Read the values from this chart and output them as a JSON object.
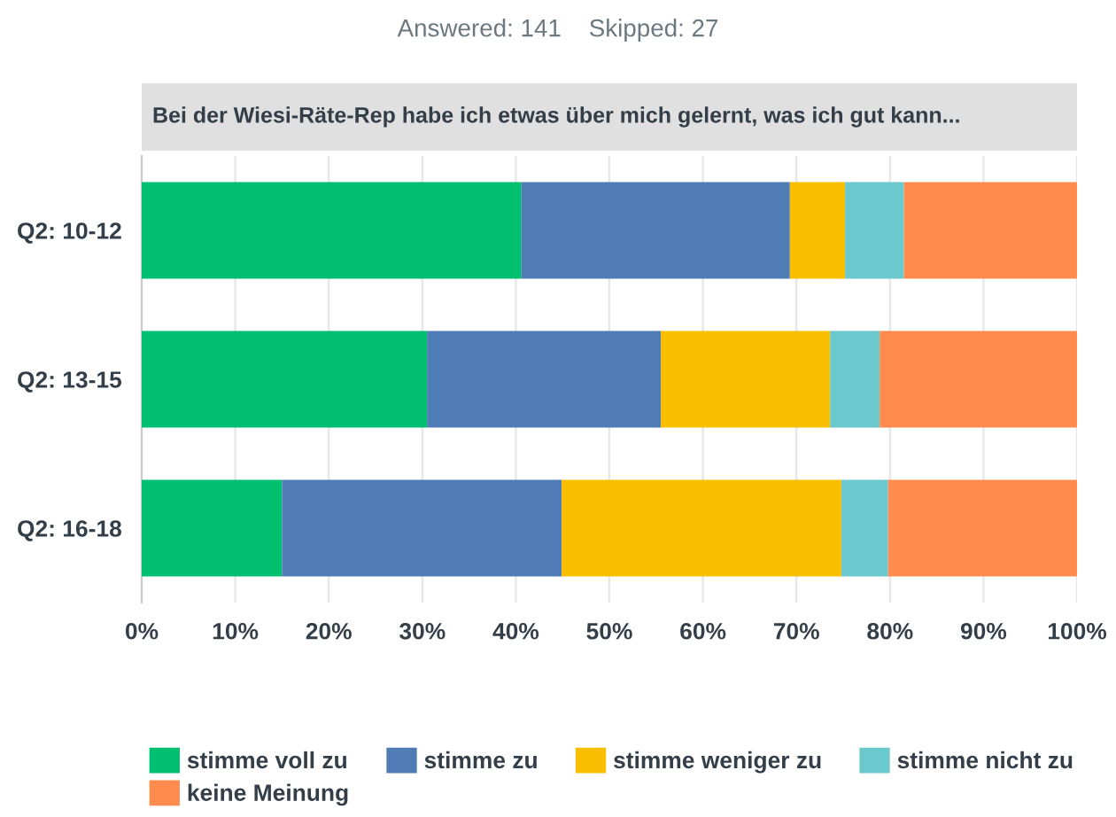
{
  "chart_data": {
    "type": "bar",
    "orientation": "horizontal",
    "stacked": true,
    "title": "Bei der Wiesi-Räte-Rep habe ich etwas über mich gelernt, was ich gut kann...",
    "subtitle": "Answered: 141    Skipped: 27",
    "categories": [
      "Q2: 10-12",
      "Q2: 13-15",
      "Q2: 16-18"
    ],
    "series": [
      {
        "name": "stimme voll zu",
        "color": "#00bf6f",
        "values": [
          40.6,
          30.5,
          15.0
        ]
      },
      {
        "name": "stimme zu",
        "color": "#507cb6",
        "values": [
          28.7,
          25.0,
          29.9
        ]
      },
      {
        "name": "stimme weniger zu",
        "color": "#f9be00",
        "values": [
          5.9,
          18.1,
          29.9
        ]
      },
      {
        "name": "stimme nicht zu",
        "color": "#6bc8cd",
        "values": [
          6.3,
          5.3,
          5.0
        ]
      },
      {
        "name": "keine Meinung",
        "color": "#ff8b4f",
        "values": [
          18.5,
          21.1,
          20.2
        ]
      }
    ],
    "xlim": [
      0,
      100
    ],
    "xticks": [
      {
        "value": 0,
        "label": "0%"
      },
      {
        "value": 10,
        "label": "10%"
      },
      {
        "value": 20,
        "label": "20%"
      },
      {
        "value": 30,
        "label": "30%"
      },
      {
        "value": 40,
        "label": "40%"
      },
      {
        "value": 50,
        "label": "50%"
      },
      {
        "value": 60,
        "label": "60%"
      },
      {
        "value": 70,
        "label": "70%"
      },
      {
        "value": 80,
        "label": "80%"
      },
      {
        "value": 90,
        "label": "90%"
      },
      {
        "value": 100,
        "label": "100%"
      }
    ],
    "grid": "x",
    "legend": "bottom"
  }
}
